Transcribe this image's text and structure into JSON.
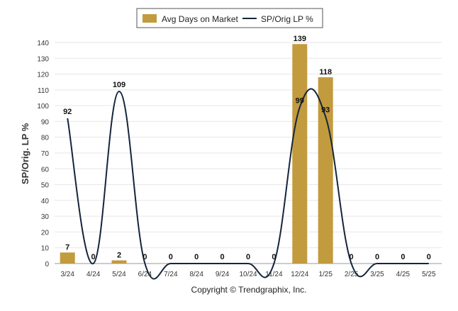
{
  "chart_data": {
    "type": "bar",
    "categories": [
      "3/24",
      "4/24",
      "5/24",
      "6/24",
      "7/24",
      "8/24",
      "9/24",
      "10/24",
      "11/24",
      "12/24",
      "1/25",
      "2/25",
      "3/25",
      "4/25",
      "5/25"
    ],
    "series": [
      {
        "name": "Avg Days on Market",
        "type": "bar",
        "values": [
          7,
          0,
          2,
          0,
          0,
          0,
          0,
          0,
          0,
          139,
          118,
          0,
          0,
          0,
          0
        ],
        "color": "#c29b3e"
      },
      {
        "name": "SP/Orig LP %",
        "type": "line",
        "values": [
          92,
          0,
          109,
          0,
          0,
          0,
          0,
          0,
          0,
          99,
          93,
          0,
          0,
          0,
          0
        ],
        "color": "#14263d"
      }
    ],
    "ylabel": "SP/Orig. LP %",
    "ylim": [
      0,
      140
    ],
    "yticks": [
      0,
      10,
      20,
      30,
      40,
      50,
      60,
      70,
      80,
      90,
      100,
      110,
      120,
      130,
      140
    ],
    "grid": true,
    "legend_position": "top-center",
    "footer": "Copyright © Trendgraphix, Inc."
  }
}
